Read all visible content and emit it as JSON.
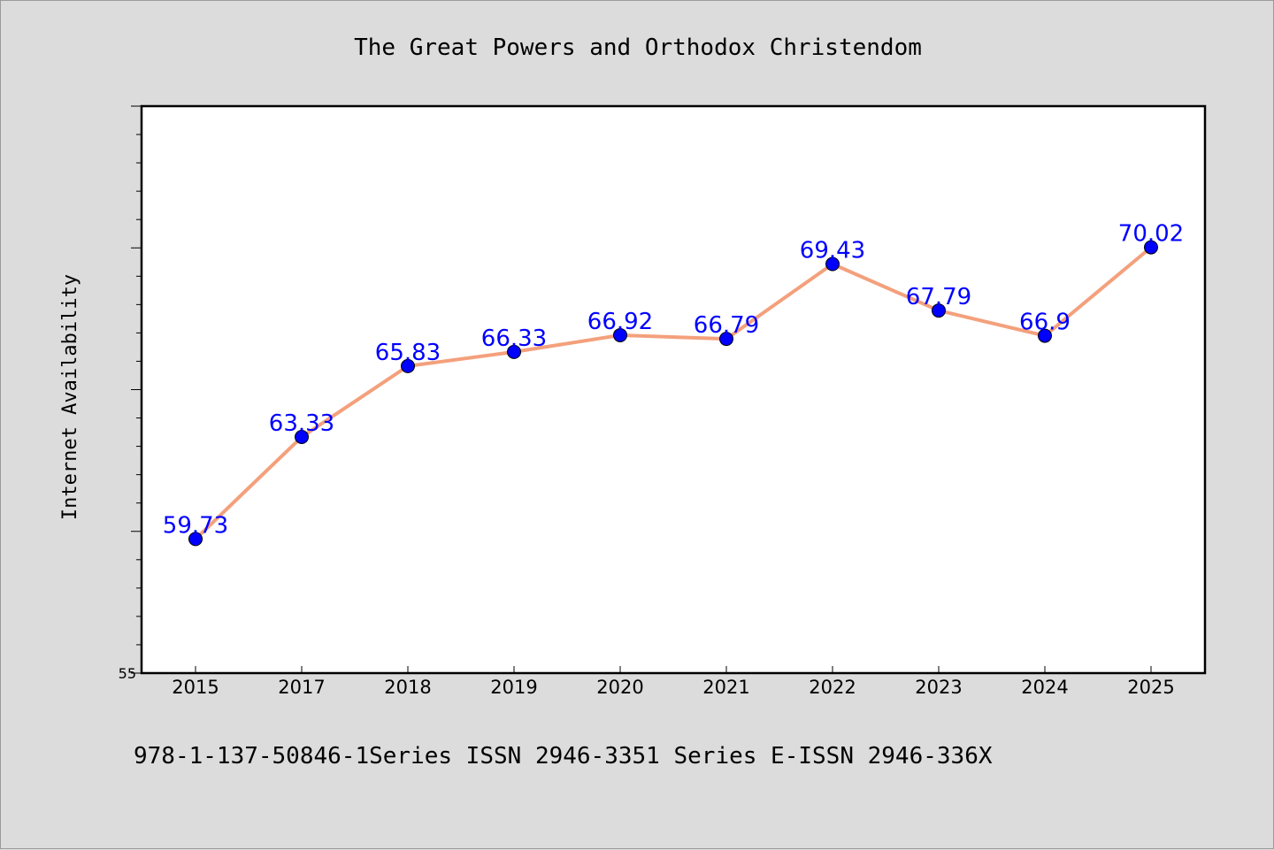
{
  "chart_data": {
    "type": "line",
    "title": "The Great Powers and Orthodox Christendom",
    "xlabel": "",
    "ylabel": "Internet Availability",
    "footer": "978-1-137-50846-1Series ISSN 2946-3351 Series E-ISSN 2946-336X",
    "categories": [
      "2015",
      "2017",
      "2018",
      "2019",
      "2020",
      "2021",
      "2022",
      "2023",
      "2024",
      "2025"
    ],
    "values": [
      59.73,
      63.33,
      65.83,
      66.33,
      66.92,
      66.79,
      69.43,
      67.79,
      66.9,
      70.02
    ],
    "data_labels": [
      "59.73",
      "63.33",
      "65.83",
      "66.33",
      "66.92",
      "66.79",
      "69.43",
      "67.79",
      "66.9",
      "70.02"
    ],
    "y_tick_labels": [
      "55"
    ],
    "ylim": [
      55,
      75
    ],
    "grid": false,
    "legend": "none",
    "colors": {
      "line": "#f4a07c",
      "marker": "#0000ff",
      "data_label": "#0000ff",
      "plot_background": "#ffffff",
      "page_background": "#dcdcdc"
    }
  }
}
